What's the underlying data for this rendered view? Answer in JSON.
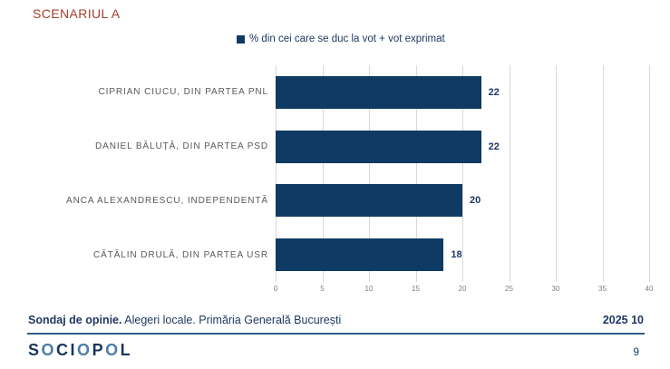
{
  "title": "SCENARIUL A",
  "legend": {
    "label": "% din cei care se duc la vot + vot exprimat",
    "swatch_color": "#0F3A63"
  },
  "chart_data": {
    "type": "bar",
    "orientation": "horizontal",
    "title": "SCENARIUL A",
    "series_name": "% din cei care se duc la vot + vot exprimat",
    "categories": [
      "CIPRIAN CIUCU, DIN PARTEA PNL",
      "DANIEL BĂLUȚĂ, DIN PARTEA PSD",
      "ANCA ALEXANDRESCU, INDEPENDENTĂ",
      "CĂTĂLIN DRULĂ, DIN PARTEA USR"
    ],
    "values": [
      22,
      22,
      20,
      18
    ],
    "xlim": [
      0,
      40
    ],
    "xticks": [
      0,
      5,
      10,
      15,
      20,
      25,
      30,
      35,
      40
    ],
    "bar_color": "#0F3A63",
    "grid": true,
    "legend_position": "top"
  },
  "footer": {
    "bold": "Sondaj de opinie.",
    "rest": " Alegeri locale. Primăria Generală București",
    "date": "2025 10"
  },
  "branding": {
    "logo": "SOCIOPOL",
    "page_number": "9"
  },
  "colors": {
    "title": "#A2402C",
    "bar": "#0F3A63",
    "navy_text": "#1F3864",
    "category_label": "#595959",
    "tick_label": "#7F7F7F",
    "gridline": "#D9D9D9",
    "footer_line": "#2E5F8A",
    "logo_navy": "#1B365D",
    "logo_accent": "#4E7DA6"
  }
}
